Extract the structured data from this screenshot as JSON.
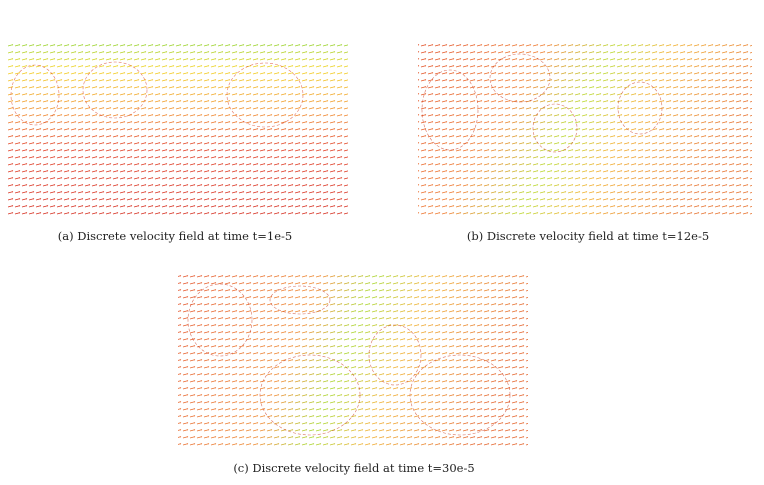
{
  "figure": {
    "captions": [
      "(a) Discrete velocity field at time t=1e-5",
      "(b) Discrete velocity field at time t=12e-5",
      "(c) Discrete velocity field at time t=30e-5"
    ]
  }
}
